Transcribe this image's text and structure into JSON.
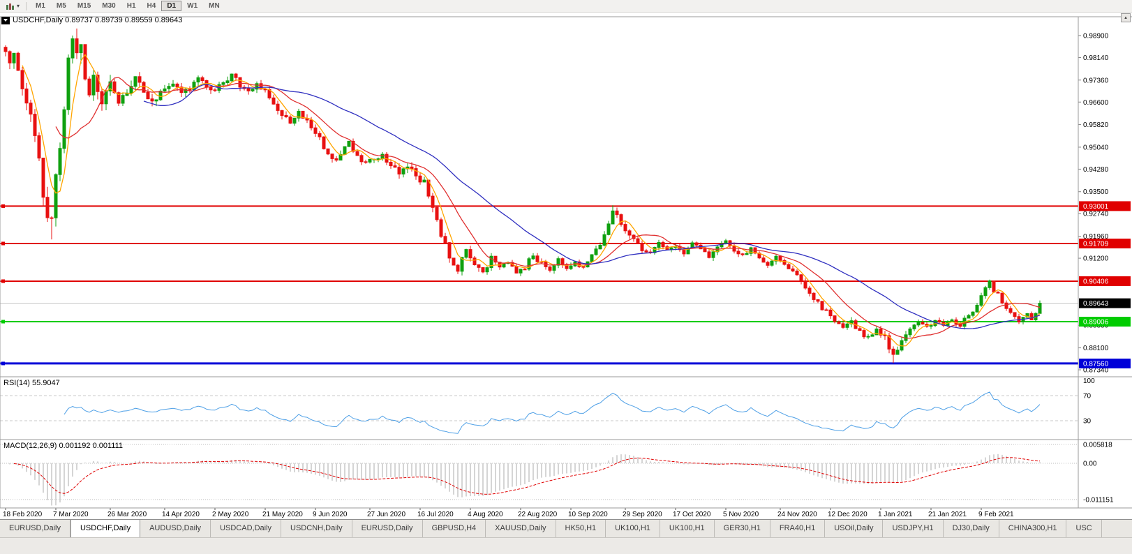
{
  "icons": {
    "timeframe_caret": "▾",
    "scroll_up": "▴"
  },
  "toolbar": {
    "timeframes": [
      "M1",
      "M5",
      "M15",
      "M30",
      "H1",
      "H4",
      "D1",
      "W1",
      "MN"
    ],
    "active_timeframe": "D1"
  },
  "header": {
    "text": "USDCHF,Daily 0.89737 0.89739 0.89559 0.89643"
  },
  "indicators": {
    "rsi_label": "RSI(14) 55.9047",
    "rsi_levels": [
      {
        "text": "100",
        "value": 100
      },
      {
        "text": "70",
        "value": 70
      },
      {
        "text": "30",
        "value": 30
      }
    ],
    "macd_label": "MACD(12,26,9) 0.001192 0.001111",
    "macd_levels": [
      {
        "text": "0.005818",
        "value": 0.005818
      },
      {
        "text": "0.00",
        "value": 0
      },
      {
        "text": "-0.011151",
        "value": -0.011151
      }
    ]
  },
  "chart_data": {
    "type": "candlestick",
    "symbol": "USDCHF",
    "timeframe": "Daily",
    "ohlc_display": {
      "open": "0.89737",
      "high": "0.89739",
      "low": "0.89559",
      "close": "0.89643"
    },
    "y_axis": {
      "range": [
        0.871,
        0.9955
      ],
      "plain_labels": [
        "0.98900",
        "0.98140",
        "0.97360",
        "0.96600",
        "0.95820",
        "0.95040",
        "0.94280",
        "0.93500",
        "0.92740",
        "0.91960",
        "0.91200",
        "0.88880",
        "0.88100",
        "0.87340"
      ]
    },
    "x_labels": [
      {
        "i": 0,
        "t": "18 Feb 2020"
      },
      {
        "i": 12,
        "t": "7 Mar 2020"
      },
      {
        "i": 25,
        "t": "26 Mar 2020"
      },
      {
        "i": 38,
        "t": "14 Apr 2020"
      },
      {
        "i": 50,
        "t": "2 May 2020"
      },
      {
        "i": 62,
        "t": "21 May 2020"
      },
      {
        "i": 74,
        "t": "9 Jun 2020"
      },
      {
        "i": 87,
        "t": "27 Jun 2020"
      },
      {
        "i": 99,
        "t": "16 Jul 2020"
      },
      {
        "i": 111,
        "t": "4 Aug 2020"
      },
      {
        "i": 123,
        "t": "22 Aug 2020"
      },
      {
        "i": 135,
        "t": "10 Sep 2020"
      },
      {
        "i": 148,
        "t": "29 Sep 2020"
      },
      {
        "i": 160,
        "t": "17 Oct 2020"
      },
      {
        "i": 172,
        "t": "5 Nov 2020"
      },
      {
        "i": 185,
        "t": "24 Nov 2020"
      },
      {
        "i": 197,
        "t": "12 Dec 2020"
      },
      {
        "i": 209,
        "t": "1 Jan 2021"
      },
      {
        "i": 221,
        "t": "21 Jan 2021"
      },
      {
        "i": 233,
        "t": "9 Feb 2021"
      }
    ],
    "candle_count": 248,
    "price_anchors": [
      [
        0,
        0.983
      ],
      [
        1,
        0.9795
      ],
      [
        2,
        0.9815
      ],
      [
        3,
        0.9765
      ],
      [
        4,
        0.9705
      ],
      [
        5,
        0.9655
      ],
      [
        6,
        0.9605
      ],
      [
        7,
        0.9525
      ],
      [
        8,
        0.9445
      ],
      [
        9,
        0.9355
      ],
      [
        10,
        0.9285
      ],
      [
        11,
        0.9255
      ],
      [
        12,
        0.9385
      ],
      [
        13,
        0.9525
      ],
      [
        14,
        0.9655
      ],
      [
        15,
        0.979
      ],
      [
        16,
        0.9875
      ],
      [
        17,
        0.9815
      ],
      [
        18,
        0.9855
      ],
      [
        19,
        0.9755
      ],
      [
        20,
        0.9685
      ],
      [
        21,
        0.9745
      ],
      [
        22,
        0.9705
      ],
      [
        23,
        0.9645
      ],
      [
        24,
        0.97
      ],
      [
        25,
        0.972
      ],
      [
        27,
        0.966
      ],
      [
        29,
        0.97
      ],
      [
        31,
        0.974
      ],
      [
        33,
        0.97
      ],
      [
        35,
        0.9665
      ],
      [
        38,
        0.97
      ],
      [
        40,
        0.973
      ],
      [
        42,
        0.9685
      ],
      [
        44,
        0.971
      ],
      [
        46,
        0.974
      ],
      [
        48,
        0.972
      ],
      [
        50,
        0.97
      ],
      [
        52,
        0.973
      ],
      [
        54,
        0.9755
      ],
      [
        56,
        0.972
      ],
      [
        58,
        0.97
      ],
      [
        60,
        0.972
      ],
      [
        62,
        0.97
      ],
      [
        64,
        0.966
      ],
      [
        66,
        0.962
      ],
      [
        68,
        0.9585
      ],
      [
        70,
        0.962
      ],
      [
        72,
        0.96
      ],
      [
        74,
        0.956
      ],
      [
        76,
        0.9505
      ],
      [
        78,
        0.9455
      ],
      [
        80,
        0.948
      ],
      [
        82,
        0.9515
      ],
      [
        84,
        0.948
      ],
      [
        86,
        0.9445
      ],
      [
        88,
        0.9465
      ],
      [
        90,
        0.948
      ],
      [
        92,
        0.944
      ],
      [
        94,
        0.942
      ],
      [
        96,
        0.944
      ],
      [
        98,
        0.9405
      ],
      [
        100,
        0.938
      ],
      [
        102,
        0.93
      ],
      [
        104,
        0.9205
      ],
      [
        106,
        0.9125
      ],
      [
        108,
        0.9085
      ],
      [
        110,
        0.9145
      ],
      [
        112,
        0.91
      ],
      [
        114,
        0.9065
      ],
      [
        116,
        0.912
      ],
      [
        118,
        0.9085
      ],
      [
        120,
        0.911
      ],
      [
        122,
        0.9065
      ],
      [
        124,
        0.909
      ],
      [
        126,
        0.913
      ],
      [
        128,
        0.91
      ],
      [
        130,
        0.9075
      ],
      [
        132,
        0.912
      ],
      [
        134,
        0.909
      ],
      [
        136,
        0.911
      ],
      [
        138,
        0.9085
      ],
      [
        140,
        0.9125
      ],
      [
        142,
        0.917
      ],
      [
        144,
        0.924
      ],
      [
        145,
        0.929
      ],
      [
        146,
        0.9265
      ],
      [
        148,
        0.922
      ],
      [
        150,
        0.918
      ],
      [
        152,
        0.915
      ],
      [
        154,
        0.9135
      ],
      [
        156,
        0.917
      ],
      [
        158,
        0.9145
      ],
      [
        160,
        0.916
      ],
      [
        162,
        0.914
      ],
      [
        164,
        0.917
      ],
      [
        166,
        0.915
      ],
      [
        168,
        0.9125
      ],
      [
        170,
        0.916
      ],
      [
        172,
        0.918
      ],
      [
        174,
        0.9145
      ],
      [
        176,
        0.9125
      ],
      [
        178,
        0.915
      ],
      [
        180,
        0.912
      ],
      [
        182,
        0.91
      ],
      [
        184,
        0.912
      ],
      [
        186,
        0.9095
      ],
      [
        188,
        0.9075
      ],
      [
        190,
        0.904
      ],
      [
        192,
        0.9
      ],
      [
        194,
        0.8965
      ],
      [
        196,
        0.8935
      ],
      [
        198,
        0.8905
      ],
      [
        200,
        0.8875
      ],
      [
        202,
        0.89
      ],
      [
        204,
        0.8865
      ],
      [
        206,
        0.8845
      ],
      [
        208,
        0.888
      ],
      [
        210,
        0.8845
      ],
      [
        212,
        0.8785
      ],
      [
        213,
        0.8805
      ],
      [
        214,
        0.8835
      ],
      [
        216,
        0.8875
      ],
      [
        218,
        0.89
      ],
      [
        220,
        0.8885
      ],
      [
        222,
        0.89
      ],
      [
        224,
        0.8885
      ],
      [
        226,
        0.891
      ],
      [
        228,
        0.889
      ],
      [
        230,
        0.8925
      ],
      [
        232,
        0.8955
      ],
      [
        233,
        0.8985
      ],
      [
        234,
        0.9015
      ],
      [
        235,
        0.9035
      ],
      [
        236,
        0.901
      ],
      [
        237,
        0.8995
      ],
      [
        238,
        0.8965
      ],
      [
        240,
        0.8935
      ],
      [
        242,
        0.8905
      ],
      [
        244,
        0.893
      ],
      [
        245,
        0.8905
      ],
      [
        246,
        0.8925
      ],
      [
        247,
        0.89643
      ]
    ],
    "volatility_anchors": [
      [
        0,
        0.005
      ],
      [
        6,
        0.0065
      ],
      [
        12,
        0.0075
      ],
      [
        18,
        0.007
      ],
      [
        24,
        0.0048
      ],
      [
        32,
        0.0035
      ],
      [
        45,
        0.0028
      ],
      [
        60,
        0.0026
      ],
      [
        75,
        0.003
      ],
      [
        90,
        0.0026
      ],
      [
        100,
        0.0034
      ],
      [
        108,
        0.003
      ],
      [
        120,
        0.0024
      ],
      [
        140,
        0.0024
      ],
      [
        146,
        0.0026
      ],
      [
        160,
        0.0022
      ],
      [
        180,
        0.0022
      ],
      [
        192,
        0.0024
      ],
      [
        205,
        0.0024
      ],
      [
        212,
        0.0028
      ],
      [
        222,
        0.002
      ],
      [
        233,
        0.0024
      ],
      [
        240,
        0.0022
      ],
      [
        247,
        0.0016
      ]
    ],
    "wick_overrides": [
      {
        "i": 11,
        "low": 0.9185
      },
      {
        "i": 16,
        "high": 0.989
      },
      {
        "i": 145,
        "high": 0.9303
      },
      {
        "i": 212,
        "low": 0.8757
      },
      {
        "i": 235,
        "high": 0.9046
      },
      {
        "i": 247,
        "high": 0.89739,
        "low": 0.89559
      }
    ],
    "horizontal_lines": [
      {
        "label": "0.93001",
        "price": 0.93001,
        "color": "#e00000",
        "width": 2
      },
      {
        "label": "0.91709",
        "price": 0.91709,
        "color": "#e00000",
        "width": 2
      },
      {
        "label": "0.90406",
        "price": 0.90406,
        "color": "#e00000",
        "width": 2
      },
      {
        "label": "0.89006",
        "price": 0.89006,
        "color": "#00cc00",
        "width": 2
      },
      {
        "label": "0.87560",
        "price": 0.8756,
        "color": "#0000d8",
        "width": 3
      }
    ],
    "current_price": {
      "label": "0.89643",
      "price": 0.89643,
      "bg": "#000000"
    },
    "moving_averages": [
      {
        "period": 5,
        "color": "#ffa500"
      },
      {
        "period": 13,
        "color": "#e03030"
      },
      {
        "period": 34,
        "color": "#3030c0"
      }
    ],
    "rsi": {
      "period": 14,
      "current": 55.9047,
      "color": "#4d9fe6"
    },
    "macd": {
      "fast": 12,
      "slow": 26,
      "signal": 9,
      "value": 0.001192,
      "signal_value": 0.001111,
      "hist_color": "#ababab",
      "signal_color": "#e00000",
      "y_range": [
        -0.01376,
        0.00731
      ]
    },
    "candle_up_color": "#0fa00f",
    "candle_down_color": "#e81010"
  },
  "tabs": {
    "items": [
      {
        "label": "EURUSD,Daily",
        "active": false
      },
      {
        "label": "USDCHF,Daily",
        "active": true
      },
      {
        "label": "AUDUSD,Daily",
        "active": false
      },
      {
        "label": "USDCAD,Daily",
        "active": false
      },
      {
        "label": "USDCNH,Daily",
        "active": false
      },
      {
        "label": "EURUSD,Daily",
        "active": false
      },
      {
        "label": "GBPUSD,H4",
        "active": false
      },
      {
        "label": "XAUUSD,Daily",
        "active": false
      },
      {
        "label": "HK50,H1",
        "active": false
      },
      {
        "label": "UK100,H1",
        "active": false
      },
      {
        "label": "UK100,H1",
        "active": false
      },
      {
        "label": "GER30,H1",
        "active": false
      },
      {
        "label": "FRA40,H1",
        "active": false
      },
      {
        "label": "USOil,Daily",
        "active": false
      },
      {
        "label": "USDJPY,H1",
        "active": false
      },
      {
        "label": "DJ30,Daily",
        "active": false
      },
      {
        "label": "CHINA300,H1",
        "active": false
      },
      {
        "label": "USC",
        "active": false
      }
    ]
  }
}
